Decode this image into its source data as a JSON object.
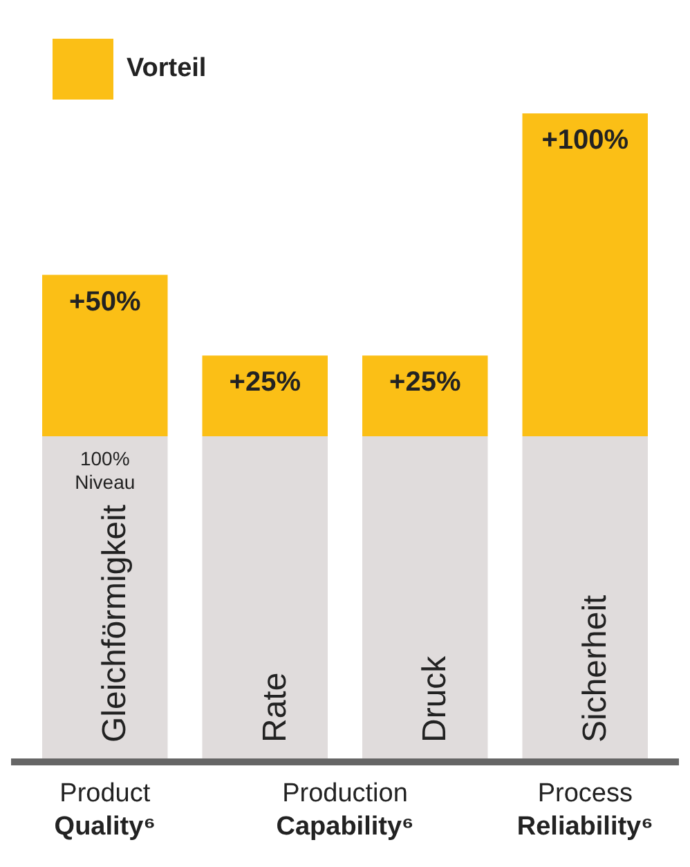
{
  "chart_data": {
    "type": "bar",
    "stacked": true,
    "categories": [
      "Gleichförmigkeit",
      "Rate",
      "Druck",
      "Sicherheit"
    ],
    "series": [
      {
        "color": "#e0dcdc",
        "values": [
          100,
          100,
          100,
          100
        ],
        "value_labels": [
          "100%\nNiveau",
          null,
          null,
          null
        ]
      },
      {
        "name": "Vorteil",
        "color": "#fbbf16",
        "values": [
          50,
          25,
          25,
          100
        ],
        "value_labels": [
          "+50%",
          "+25%",
          "+25%",
          "+100%"
        ]
      }
    ],
    "legend": "top left",
    "annotations": [
      "Product\nQuality⁶",
      "Production\nCapability⁶",
      "Process\nReliability⁶"
    ]
  }
}
